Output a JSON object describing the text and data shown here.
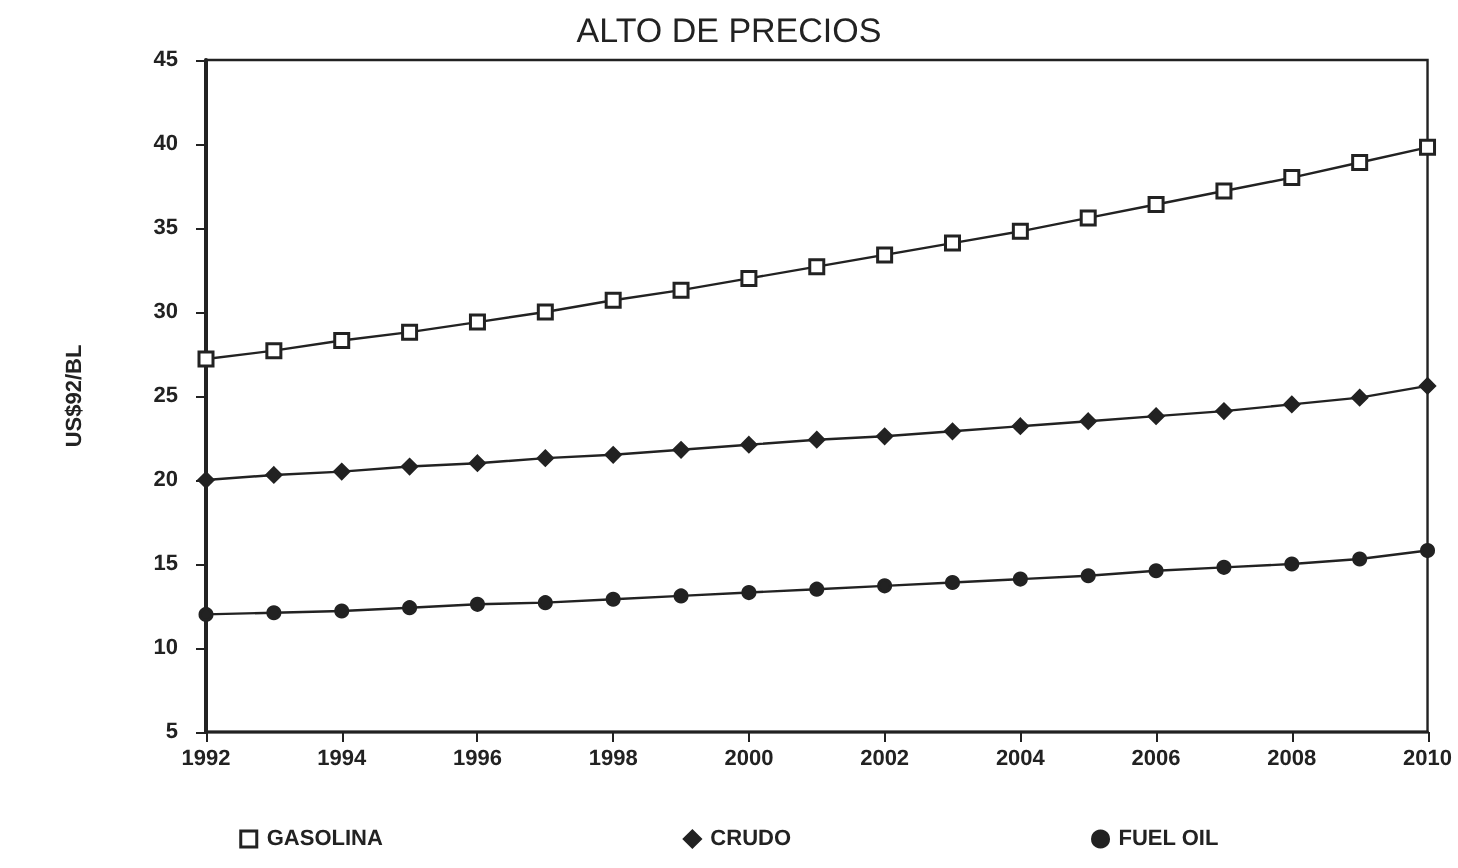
{
  "chart_data": {
    "type": "line",
    "title": "ALTO DE PRECIOS",
    "ylabel": "US$92/BL",
    "x": [
      1992,
      1993,
      1994,
      1995,
      1996,
      1997,
      1998,
      1999,
      2000,
      2001,
      2002,
      2003,
      2004,
      2005,
      2006,
      2007,
      2008,
      2009,
      2010
    ],
    "series": [
      {
        "name": "GASOLINA",
        "color": "#222222",
        "marker": "square",
        "values": [
          27.2,
          27.7,
          28.3,
          28.8,
          29.4,
          30.0,
          30.7,
          31.3,
          32.0,
          32.7,
          33.4,
          34.1,
          34.8,
          35.6,
          36.4,
          37.2,
          38.0,
          38.9,
          39.8
        ]
      },
      {
        "name": "CRUDO",
        "color": "#222222",
        "marker": "diamond",
        "values": [
          20.0,
          20.3,
          20.5,
          20.8,
          21.0,
          21.3,
          21.5,
          21.8,
          22.1,
          22.4,
          22.6,
          22.9,
          23.2,
          23.5,
          23.8,
          24.1,
          24.5,
          24.9,
          25.6
        ]
      },
      {
        "name": "FUEL OIL",
        "color": "#222222",
        "marker": "circle",
        "values": [
          12.0,
          12.1,
          12.2,
          12.4,
          12.6,
          12.7,
          12.9,
          13.1,
          13.3,
          13.5,
          13.7,
          13.9,
          14.1,
          14.3,
          14.6,
          14.8,
          15.0,
          15.3,
          15.8
        ]
      }
    ],
    "xlim": [
      1992,
      2010
    ],
    "xticks": [
      1992,
      1994,
      1996,
      1998,
      2000,
      2002,
      2004,
      2006,
      2008,
      2010
    ],
    "ylim": [
      5,
      45
    ],
    "yticks": [
      5,
      10,
      15,
      20,
      25,
      30,
      35,
      40,
      45
    ],
    "grid": false,
    "legend": "bottom",
    "line_style": "solid"
  }
}
